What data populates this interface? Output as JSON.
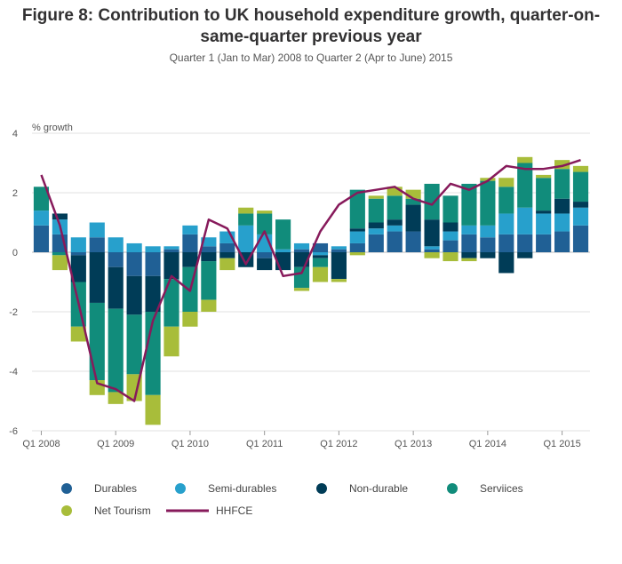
{
  "chart_data": {
    "type": "bar",
    "title": "Figure 8: Contribution to UK household expenditure growth, quarter-on-same-quarter previous year",
    "subtitle": "Quarter 1 (Jan to Mar) 2008 to Quarter 2 (Apr to June) 2015",
    "ylabel": "% growth",
    "xlabel": "",
    "ylim": [
      -6,
      4
    ],
    "yticks": [
      4,
      2,
      0,
      -2,
      -4,
      -6
    ],
    "grid": true,
    "legend_position": "bottom",
    "categories": [
      "Q1 2008",
      "Q2 2008",
      "Q3 2008",
      "Q4 2008",
      "Q1 2009",
      "Q2 2009",
      "Q3 2009",
      "Q4 2009",
      "Q1 2010",
      "Q2 2010",
      "Q3 2010",
      "Q4 2010",
      "Q1 2011",
      "Q2 2011",
      "Q3 2011",
      "Q4 2011",
      "Q1 2012",
      "Q2 2012",
      "Q3 2012",
      "Q4 2012",
      "Q1 2013",
      "Q2 2013",
      "Q3 2013",
      "Q4 2013",
      "Q1 2014",
      "Q2 2014",
      "Q3 2014",
      "Q4 2014",
      "Q1 2015",
      "Q2 2015"
    ],
    "x_tick_labels": [
      "Q1 2008",
      "Q1 2009",
      "Q1 2010",
      "Q1 2011",
      "Q1 2012",
      "Q1 2013",
      "Q1 2014",
      "Q1 2015"
    ],
    "series": [
      {
        "name": "Durables",
        "color": "#206095",
        "values": [
          0.9,
          0.6,
          -0.1,
          0.5,
          -0.5,
          -0.8,
          -0.8,
          0.1,
          0.6,
          0.2,
          0.3,
          0.0,
          -0.2,
          0.0,
          0.1,
          0.3,
          0.1,
          0.3,
          0.6,
          0.7,
          0.7,
          0.1,
          0.4,
          0.6,
          0.5,
          0.6,
          0.6,
          0.6,
          0.7,
          0.9
        ]
      },
      {
        "name": "Semi-durables",
        "color": "#27a0cc",
        "values": [
          0.5,
          0.5,
          0.5,
          0.5,
          0.5,
          0.3,
          0.2,
          0.1,
          0.3,
          0.3,
          0.4,
          0.9,
          0.6,
          0.1,
          0.2,
          -0.1,
          0.1,
          0.4,
          0.2,
          0.2,
          0.0,
          0.1,
          0.3,
          0.3,
          0.4,
          0.7,
          0.9,
          0.7,
          0.6,
          0.6
        ]
      },
      {
        "name": "Non-durable",
        "color": "#003c57",
        "values": [
          0.0,
          0.2,
          -0.9,
          -1.7,
          -1.4,
          -1.3,
          -1.2,
          -0.9,
          -0.5,
          -0.3,
          -0.2,
          -0.5,
          -0.4,
          -0.6,
          -0.5,
          -0.1,
          -0.9,
          0.1,
          0.2,
          0.2,
          0.9,
          0.9,
          0.3,
          -0.2,
          -0.2,
          -0.7,
          -0.2,
          0.1,
          0.5,
          0.2
        ]
      },
      {
        "name": "Serviices",
        "color": "#118c7b",
        "values": [
          0.8,
          -0.1,
          -1.5,
          -2.6,
          -2.8,
          -2.0,
          -2.8,
          -1.6,
          -1.5,
          -1.3,
          0.0,
          0.4,
          0.7,
          1.0,
          -0.7,
          -0.3,
          0.0,
          1.3,
          0.8,
          0.8,
          0.2,
          1.2,
          0.9,
          1.4,
          1.5,
          0.9,
          1.5,
          1.1,
          1.0,
          1.0
        ]
      },
      {
        "name": "Net Tourism",
        "color": "#a8bd3a",
        "values": [
          0.0,
          -0.5,
          -0.5,
          -0.5,
          -0.4,
          -0.9,
          -1.0,
          -1.0,
          -0.5,
          -0.4,
          -0.4,
          0.2,
          0.1,
          0.0,
          -0.1,
          -0.5,
          -0.1,
          -0.1,
          0.1,
          0.3,
          0.3,
          -0.2,
          -0.3,
          -0.1,
          0.1,
          0.3,
          0.2,
          0.1,
          0.3,
          0.2
        ]
      }
    ],
    "line_series": {
      "name": "HHFCE",
      "color": "#871a5b",
      "values": [
        2.6,
        0.9,
        -1.7,
        -4.4,
        -4.6,
        -5.0,
        -2.3,
        -0.8,
        -1.3,
        1.1,
        0.8,
        -0.4,
        0.7,
        -0.8,
        -0.7,
        0.7,
        1.6,
        2.0,
        2.1,
        2.2,
        1.8,
        1.6,
        2.3,
        2.1,
        2.4,
        2.9,
        2.8,
        2.8,
        2.9,
        3.1
      ]
    },
    "legend_items": [
      {
        "name": "Durables",
        "kind": "dot",
        "color": "#206095"
      },
      {
        "name": "Semi-durables",
        "kind": "dot",
        "color": "#27a0cc"
      },
      {
        "name": "Non-durable",
        "kind": "dot",
        "color": "#003c57"
      },
      {
        "name": "Serviices",
        "kind": "dot",
        "color": "#118c7b"
      },
      {
        "name": "Net Tourism",
        "kind": "dot",
        "color": "#a8bd3a"
      },
      {
        "name": "HHFCE",
        "kind": "line",
        "color": "#871a5b"
      }
    ]
  }
}
